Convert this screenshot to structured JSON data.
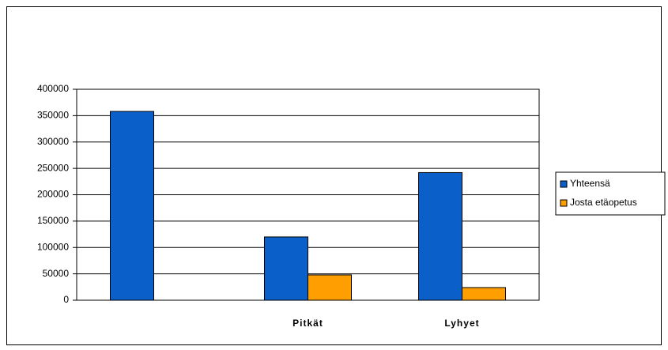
{
  "chart_data": {
    "type": "bar",
    "categories": [
      null,
      "Pitkät",
      "Lyhyet"
    ],
    "series": [
      {
        "name": "Yhteensä",
        "color": "#0b5fc9",
        "values": [
          358000,
          120000,
          242000
        ]
      },
      {
        "name": "Josta etäopetus",
        "color": "#ff9e00",
        "values": [
          null,
          48000,
          24000
        ]
      }
    ],
    "ylim": [
      0,
      400000
    ],
    "yticks": [
      0,
      50000,
      100000,
      150000,
      200000,
      250000,
      300000,
      350000,
      400000
    ],
    "grid": true,
    "legend": "right"
  }
}
